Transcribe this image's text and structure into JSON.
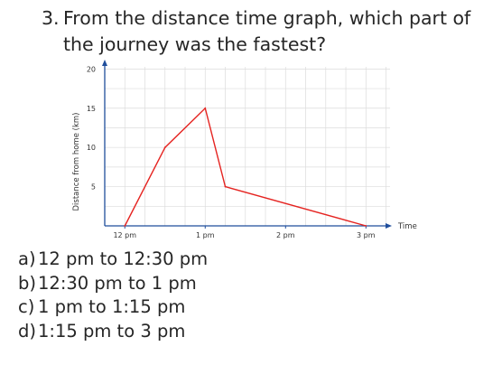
{
  "question": {
    "number": "3.",
    "text_line1": "From the distance time graph, which part of",
    "text_line2": "the journey was the fastest?"
  },
  "chart_data": {
    "type": "line",
    "xlabel": "Time",
    "ylabel": "Distance from home (km)",
    "x_tick_labels": [
      "12 pm",
      "1 pm",
      "2 pm",
      "3 pm"
    ],
    "x_ticks_hours": [
      0,
      1,
      2,
      3
    ],
    "y_ticks": [
      5,
      10,
      15,
      20
    ],
    "xlim_hours": [
      -0.25,
      3.3
    ],
    "ylim": [
      0,
      20.5
    ],
    "grid": true,
    "series": [
      {
        "x_hours": [
          0,
          0.5,
          1,
          1.25,
          3
        ],
        "values": [
          0,
          10,
          15,
          5,
          0
        ],
        "color": "#e52421"
      }
    ]
  },
  "options": [
    {
      "letter": "a)",
      "text": "12 pm to 12:30 pm"
    },
    {
      "letter": "b)",
      "text": "12:30 pm to 1 pm"
    },
    {
      "letter": "c)",
      "text": "1 pm to 1:15 pm"
    },
    {
      "letter": "d)",
      "text": "1:15 pm to 3 pm"
    }
  ]
}
